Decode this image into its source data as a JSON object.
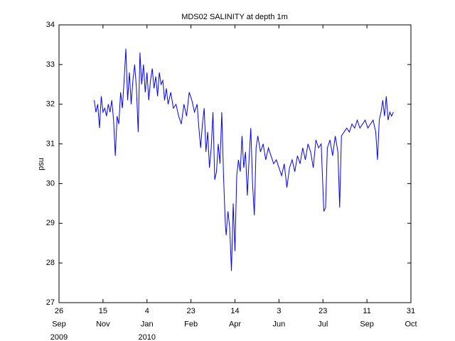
{
  "chart_data": {
    "type": "line",
    "title": "MDS02 SALINITY at depth 1m",
    "y_label": "psu",
    "color": "#0000ff",
    "xlim": [
      "2009-09-26",
      "2010-10-31"
    ],
    "xticks": [
      {
        "value": "2009-09-26",
        "label": [
          "26",
          "Sep",
          "2009"
        ]
      },
      {
        "value": "2009-11-15",
        "label": [
          "15",
          "Nov"
        ]
      },
      {
        "value": "2010-01-04",
        "label": [
          "4",
          "Jan",
          "2010"
        ]
      },
      {
        "value": "2010-02-23",
        "label": [
          "23",
          "Feb"
        ]
      },
      {
        "value": "2010-04-14",
        "label": [
          "14",
          "Apr"
        ]
      },
      {
        "value": "2010-06-03",
        "label": [
          "3",
          "Jun"
        ]
      },
      {
        "value": "2010-07-23",
        "label": [
          "23",
          "Jul"
        ]
      },
      {
        "value": "2010-09-11",
        "label": [
          "11",
          "Sep"
        ]
      },
      {
        "value": "2010-10-31",
        "label": [
          "31",
          "Oct"
        ]
      }
    ],
    "ylim": [
      27,
      34
    ],
    "yticks": [
      27,
      28,
      29,
      30,
      31,
      32,
      33,
      34
    ],
    "x": [
      "2009-11-05",
      "2009-11-07",
      "2009-11-09",
      "2009-11-11",
      "2009-11-13",
      "2009-11-15",
      "2009-11-17",
      "2009-11-19",
      "2009-11-21",
      "2009-11-23",
      "2009-11-25",
      "2009-11-27",
      "2009-11-29",
      "2009-12-01",
      "2009-12-03",
      "2009-12-05",
      "2009-12-07",
      "2009-12-09",
      "2009-12-11",
      "2009-12-13",
      "2009-12-15",
      "2009-12-17",
      "2009-12-19",
      "2009-12-21",
      "2009-12-23",
      "2009-12-25",
      "2009-12-27",
      "2009-12-29",
      "2009-12-31",
      "2010-01-02",
      "2010-01-04",
      "2010-01-06",
      "2010-01-08",
      "2010-01-10",
      "2010-01-12",
      "2010-01-14",
      "2010-01-16",
      "2010-01-18",
      "2010-01-20",
      "2010-01-22",
      "2010-01-24",
      "2010-01-26",
      "2010-01-28",
      "2010-01-31",
      "2010-02-03",
      "2010-02-06",
      "2010-02-09",
      "2010-02-12",
      "2010-02-15",
      "2010-02-18",
      "2010-02-21",
      "2010-02-24",
      "2010-02-27",
      "2010-03-02",
      "2010-03-04",
      "2010-03-06",
      "2010-03-08",
      "2010-03-10",
      "2010-03-12",
      "2010-03-14",
      "2010-03-16",
      "2010-03-18",
      "2010-03-20",
      "2010-03-22",
      "2010-03-24",
      "2010-03-26",
      "2010-03-28",
      "2010-03-30",
      "2010-04-01",
      "2010-04-03",
      "2010-04-04",
      "2010-04-06",
      "2010-04-08",
      "2010-04-10",
      "2010-04-12",
      "2010-04-14",
      "2010-04-16",
      "2010-04-18",
      "2010-04-20",
      "2010-04-22",
      "2010-04-24",
      "2010-04-26",
      "2010-04-28",
      "2010-04-30",
      "2010-05-02",
      "2010-05-04",
      "2010-05-06",
      "2010-05-08",
      "2010-05-10",
      "2010-05-13",
      "2010-05-16",
      "2010-05-19",
      "2010-05-22",
      "2010-05-25",
      "2010-05-28",
      "2010-05-31",
      "2010-06-03",
      "2010-06-06",
      "2010-06-09",
      "2010-06-12",
      "2010-06-15",
      "2010-06-18",
      "2010-06-21",
      "2010-06-24",
      "2010-06-27",
      "2010-06-30",
      "2010-07-03",
      "2010-07-06",
      "2010-07-09",
      "2010-07-12",
      "2010-07-15",
      "2010-07-18",
      "2010-07-21",
      "2010-07-24",
      "2010-07-26",
      "2010-07-28",
      "2010-07-31",
      "2010-08-03",
      "2010-08-06",
      "2010-08-09",
      "2010-08-11",
      "2010-08-13",
      "2010-08-16",
      "2010-08-19",
      "2010-08-22",
      "2010-08-25",
      "2010-08-28",
      "2010-08-31",
      "2010-09-03",
      "2010-09-06",
      "2010-09-09",
      "2010-09-12",
      "2010-09-15",
      "2010-09-18",
      "2010-09-21",
      "2010-09-23",
      "2010-09-25",
      "2010-09-27",
      "2010-09-29",
      "2010-10-01",
      "2010-10-03",
      "2010-10-05",
      "2010-10-07",
      "2010-10-09",
      "2010-10-11"
    ],
    "values": [
      32.1,
      31.8,
      32.0,
      31.4,
      32.2,
      31.8,
      31.9,
      31.7,
      32.0,
      31.8,
      32.1,
      31.6,
      30.7,
      31.7,
      31.5,
      32.3,
      31.9,
      32.6,
      33.4,
      32.1,
      32.8,
      32.0,
      32.6,
      33.0,
      32.4,
      31.3,
      33.3,
      32.5,
      33.0,
      32.3,
      32.8,
      32.1,
      32.6,
      32.9,
      32.4,
      32.7,
      32.2,
      32.8,
      32.5,
      32.6,
      32.1,
      32.4,
      32.0,
      32.3,
      31.9,
      32.0,
      31.7,
      31.5,
      32.0,
      31.7,
      32.3,
      32.1,
      31.8,
      32.0,
      31.4,
      30.9,
      31.5,
      31.9,
      30.8,
      31.3,
      30.4,
      30.9,
      31.8,
      30.1,
      30.3,
      31.0,
      30.5,
      31.8,
      30.2,
      29.0,
      28.7,
      29.3,
      28.9,
      27.8,
      29.5,
      28.3,
      30.2,
      30.6,
      30.3,
      31.2,
      30.4,
      30.8,
      29.7,
      30.6,
      31.4,
      30.0,
      29.2,
      30.9,
      31.2,
      30.8,
      31.0,
      30.6,
      30.9,
      30.7,
      30.5,
      30.6,
      30.4,
      30.2,
      30.5,
      29.9,
      30.4,
      30.6,
      30.3,
      30.7,
      30.5,
      30.9,
      30.6,
      31.0,
      30.8,
      30.4,
      31.1,
      30.9,
      31.0,
      29.3,
      29.4,
      30.9,
      31.1,
      30.7,
      31.2,
      30.8,
      29.4,
      31.2,
      31.3,
      31.4,
      31.3,
      31.5,
      31.4,
      31.6,
      31.4,
      31.5,
      31.6,
      31.4,
      31.5,
      31.6,
      31.3,
      30.6,
      31.6,
      31.8,
      32.1,
      31.7,
      32.2,
      31.6,
      31.8,
      31.7,
      31.8
    ]
  }
}
